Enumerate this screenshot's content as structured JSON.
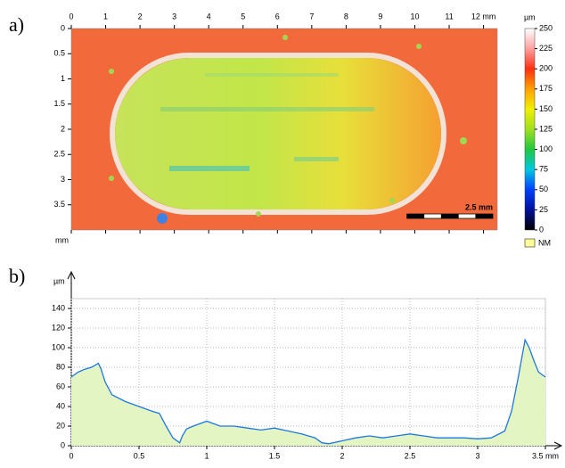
{
  "chart_data": [
    {
      "type": "heatmap",
      "label": "a)",
      "y_unit": "mm",
      "xlim": [
        0,
        12.4
      ],
      "ylim": [
        0,
        4
      ],
      "xticks": [
        0,
        1,
        2,
        3,
        4,
        5,
        6,
        7,
        8,
        9,
        10,
        11,
        {
          "value": 12,
          "label": "12 mm"
        }
      ],
      "yticks": [
        0,
        0.5,
        1,
        1.5,
        2,
        2.5,
        3,
        3.5
      ],
      "scale_bar": {
        "value": 2.5,
        "label": "2.5 mm"
      },
      "colorbar": {
        "unit": "µm",
        "lim": [
          0,
          250
        ],
        "ticks": [
          0,
          25,
          50,
          75,
          100,
          125,
          150,
          175,
          200,
          225,
          250
        ]
      },
      "legend": {
        "label": "NM",
        "color": "#ffff99"
      }
    },
    {
      "type": "area",
      "label": "b)",
      "y_unit": "µm",
      "color": "#1e78e0",
      "fill": "#e4f5c4",
      "grid": true,
      "xlim": [
        0,
        3.5
      ],
      "ylim": [
        0,
        150
      ],
      "xticks": [
        0,
        0.5,
        1,
        1.5,
        2,
        2.5,
        3,
        {
          "value": 3.5,
          "label": "3.5 mm"
        }
      ],
      "yticks": [
        0,
        20,
        40,
        60,
        80,
        100,
        120,
        140
      ],
      "x": [
        0,
        0.05,
        0.1,
        0.15,
        0.2,
        0.22,
        0.25,
        0.3,
        0.4,
        0.5,
        0.6,
        0.65,
        0.7,
        0.75,
        0.8,
        0.82,
        0.85,
        0.9,
        1.0,
        1.1,
        1.2,
        1.3,
        1.4,
        1.5,
        1.6,
        1.7,
        1.8,
        1.85,
        1.9,
        2.0,
        2.1,
        2.2,
        2.3,
        2.4,
        2.5,
        2.6,
        2.7,
        2.8,
        2.9,
        3.0,
        3.1,
        3.2,
        3.25,
        3.3,
        3.35,
        3.38,
        3.42,
        3.45,
        3.5
      ],
      "values": [
        70,
        75,
        78,
        80,
        84,
        78,
        65,
        52,
        45,
        40,
        35,
        33,
        20,
        8,
        3,
        10,
        17,
        20,
        25,
        20,
        20,
        18,
        16,
        18,
        15,
        12,
        8,
        3,
        2,
        5,
        8,
        10,
        8,
        10,
        12,
        10,
        8,
        8,
        8,
        7,
        8,
        15,
        35,
        70,
        108,
        100,
        85,
        75,
        70
      ]
    }
  ]
}
